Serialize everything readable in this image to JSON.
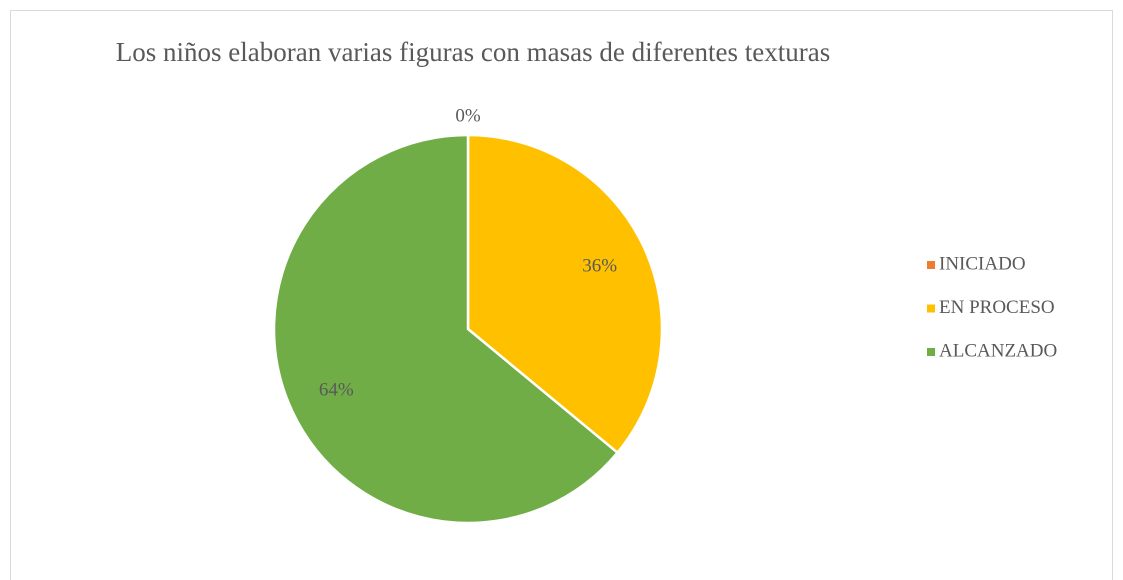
{
  "chart_data": {
    "type": "pie",
    "title": "Los niños elaboran varias figuras con masas de diferentes texturas",
    "categories": [
      "INICIADO",
      "EN PROCESO",
      "ALCANZADO"
    ],
    "values": [
      0,
      36,
      64
    ],
    "value_labels": [
      "0%",
      "36%",
      "64%"
    ],
    "colors": [
      "#ED7D31",
      "#FFC000",
      "#70AD47"
    ],
    "legend": "right"
  }
}
